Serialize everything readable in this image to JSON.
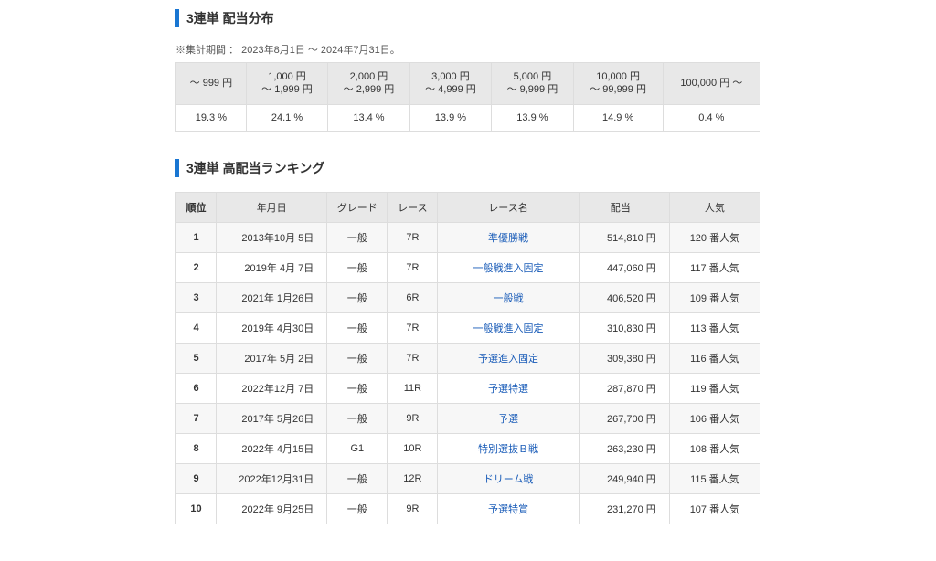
{
  "distribution": {
    "title": "3連単 配当分布",
    "note": "※集計期間 ： 2023年8月1日 ～ 2024年7月31日。",
    "headers": [
      "～ 999 円",
      "1,000 円\n～ 1,999 円",
      "2,000 円\n～ 2,999 円",
      "3,000 円\n～ 4,999 円",
      "5,000 円\n～ 9,999 円",
      "10,000 円\n～ 99,999 円",
      "100,000 円 ～"
    ],
    "values": [
      "19.3 %",
      "24.1 %",
      "13.4 %",
      "13.9 %",
      "13.9 %",
      "14.9 %",
      "0.4 %"
    ]
  },
  "ranking": {
    "title": "3連単 高配当ランキング",
    "columns": [
      "順位",
      "年月日",
      "グレード",
      "レース",
      "レース名",
      "配当",
      "人気"
    ],
    "rows": [
      {
        "rank": "1",
        "date": "2013年10月  5日",
        "grade": "一般",
        "race": "7R",
        "name": "準優勝戦",
        "payout": "514,810 円",
        "pop": "120 番人気"
      },
      {
        "rank": "2",
        "date": "2019年  4月  7日",
        "grade": "一般",
        "race": "7R",
        "name": "一般戦進入固定",
        "payout": "447,060 円",
        "pop": "117 番人気"
      },
      {
        "rank": "3",
        "date": "2021年  1月26日",
        "grade": "一般",
        "race": "6R",
        "name": "一般戦",
        "payout": "406,520 円",
        "pop": "109 番人気"
      },
      {
        "rank": "4",
        "date": "2019年  4月30日",
        "grade": "一般",
        "race": "7R",
        "name": "一般戦進入固定",
        "payout": "310,830 円",
        "pop": "113 番人気"
      },
      {
        "rank": "5",
        "date": "2017年  5月  2日",
        "grade": "一般",
        "race": "7R",
        "name": "予選進入固定",
        "payout": "309,380 円",
        "pop": "116 番人気"
      },
      {
        "rank": "6",
        "date": "2022年12月  7日",
        "grade": "一般",
        "race": "11R",
        "name": "予選特選",
        "payout": "287,870 円",
        "pop": "119 番人気"
      },
      {
        "rank": "7",
        "date": "2017年  5月26日",
        "grade": "一般",
        "race": "9R",
        "name": "予選",
        "payout": "267,700 円",
        "pop": "106 番人気"
      },
      {
        "rank": "8",
        "date": "2022年  4月15日",
        "grade": "G1",
        "race": "10R",
        "name": "特別選抜Ｂ戦",
        "payout": "263,230 円",
        "pop": "108 番人気"
      },
      {
        "rank": "9",
        "date": "2022年12月31日",
        "grade": "一般",
        "race": "12R",
        "name": "ドリーム戦",
        "payout": "249,940 円",
        "pop": "115 番人気"
      },
      {
        "rank": "10",
        "date": "2022年  9月25日",
        "grade": "一般",
        "race": "9R",
        "name": "予選特賞",
        "payout": "231,270 円",
        "pop": "107 番人気"
      }
    ]
  }
}
